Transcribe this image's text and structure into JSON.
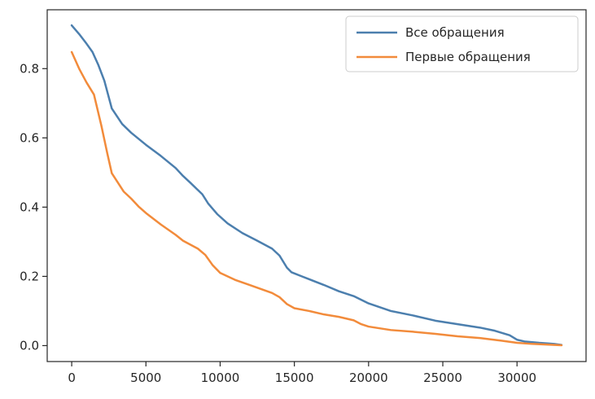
{
  "chart_data": {
    "type": "line",
    "title": "",
    "xlabel": "",
    "ylabel": "",
    "xlim": [
      -1650,
      34650
    ],
    "ylim": [
      -0.046,
      0.97
    ],
    "xticks": [
      0,
      5000,
      10000,
      15000,
      20000,
      25000,
      30000
    ],
    "yticks": [
      0.0,
      0.2,
      0.4,
      0.6,
      0.8
    ],
    "x_tick_labels": [
      "0",
      "5000",
      "10000",
      "15000",
      "20000",
      "25000",
      "30000"
    ],
    "y_tick_labels": [
      "0.0",
      "0.2",
      "0.4",
      "0.6",
      "0.8"
    ],
    "grid": false,
    "legend_position": "top-right",
    "series": [
      {
        "name": "Все обращения",
        "color": "#4c7fae",
        "points": [
          [
            0,
            0.925
          ],
          [
            500,
            0.9
          ],
          [
            1000,
            0.872
          ],
          [
            1400,
            0.848
          ],
          [
            1800,
            0.81
          ],
          [
            2200,
            0.765
          ],
          [
            2700,
            0.685
          ],
          [
            3400,
            0.64
          ],
          [
            4000,
            0.615
          ],
          [
            5000,
            0.58
          ],
          [
            6000,
            0.548
          ],
          [
            7000,
            0.513
          ],
          [
            7500,
            0.49
          ],
          [
            8000,
            0.47
          ],
          [
            8800,
            0.437
          ],
          [
            9200,
            0.41
          ],
          [
            9800,
            0.38
          ],
          [
            10500,
            0.353
          ],
          [
            11500,
            0.325
          ],
          [
            12500,
            0.303
          ],
          [
            13500,
            0.28
          ],
          [
            14000,
            0.26
          ],
          [
            14500,
            0.225
          ],
          [
            14800,
            0.212
          ],
          [
            15500,
            0.2
          ],
          [
            17000,
            0.175
          ],
          [
            18000,
            0.157
          ],
          [
            19000,
            0.143
          ],
          [
            20000,
            0.122
          ],
          [
            21500,
            0.1
          ],
          [
            23000,
            0.087
          ],
          [
            24500,
            0.072
          ],
          [
            26000,
            0.062
          ],
          [
            27500,
            0.052
          ],
          [
            28500,
            0.043
          ],
          [
            29500,
            0.03
          ],
          [
            30000,
            0.017
          ],
          [
            30500,
            0.012
          ],
          [
            31500,
            0.008
          ],
          [
            32500,
            0.005
          ],
          [
            33000,
            0.002
          ]
        ]
      },
      {
        "name": "Первые обращения",
        "color": "#f28b3b",
        "points": [
          [
            0,
            0.848
          ],
          [
            500,
            0.8
          ],
          [
            1000,
            0.76
          ],
          [
            1500,
            0.725
          ],
          [
            2000,
            0.635
          ],
          [
            2400,
            0.555
          ],
          [
            2700,
            0.498
          ],
          [
            3500,
            0.445
          ],
          [
            4000,
            0.425
          ],
          [
            4500,
            0.402
          ],
          [
            5000,
            0.383
          ],
          [
            6000,
            0.35
          ],
          [
            7000,
            0.32
          ],
          [
            7500,
            0.303
          ],
          [
            8500,
            0.28
          ],
          [
            9000,
            0.262
          ],
          [
            9500,
            0.232
          ],
          [
            10000,
            0.21
          ],
          [
            11000,
            0.19
          ],
          [
            12000,
            0.175
          ],
          [
            13500,
            0.152
          ],
          [
            14000,
            0.14
          ],
          [
            14500,
            0.12
          ],
          [
            15000,
            0.108
          ],
          [
            16000,
            0.1
          ],
          [
            17000,
            0.09
          ],
          [
            18000,
            0.083
          ],
          [
            19000,
            0.073
          ],
          [
            19500,
            0.062
          ],
          [
            20000,
            0.055
          ],
          [
            21500,
            0.045
          ],
          [
            23000,
            0.04
          ],
          [
            24500,
            0.034
          ],
          [
            26000,
            0.027
          ],
          [
            27500,
            0.022
          ],
          [
            29000,
            0.014
          ],
          [
            30000,
            0.008
          ],
          [
            31000,
            0.005
          ],
          [
            32000,
            0.003
          ],
          [
            33000,
            0.001
          ]
        ]
      }
    ]
  }
}
